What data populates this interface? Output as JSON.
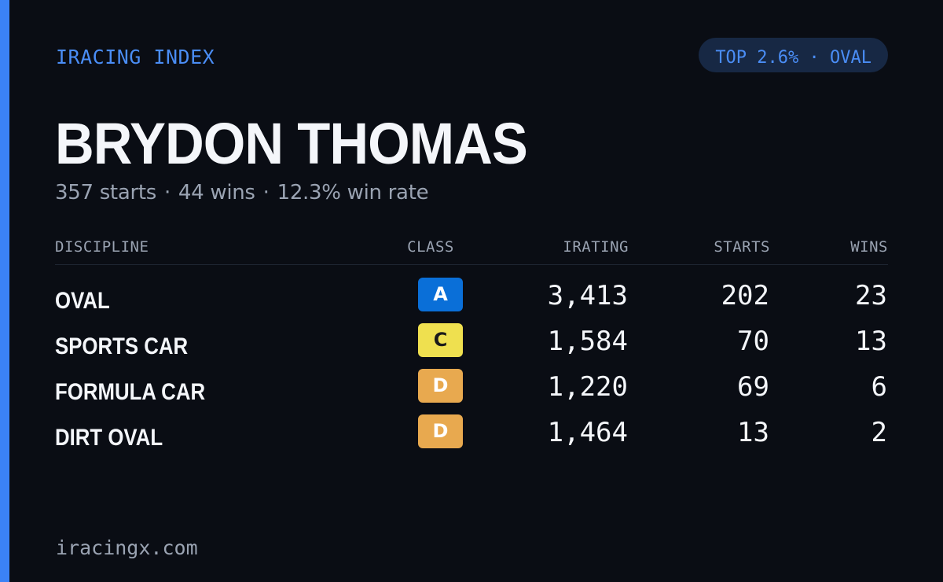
{
  "header": {
    "brand": "IRACING INDEX",
    "badge": "TOP 2.6% · OVAL"
  },
  "driver": {
    "name": "BRYDON THOMAS",
    "starts_text": "357 starts",
    "wins_text": "44 wins",
    "win_rate_text": "12.3% win rate",
    "separator": "·"
  },
  "table": {
    "columns": {
      "discipline": "DISCIPLINE",
      "class": "CLASS",
      "irating": "IRATING",
      "starts": "STARTS",
      "wins": "WINS"
    },
    "rows": [
      {
        "discipline": "OVAL",
        "class": "A",
        "irating": "3,413",
        "starts": "202",
        "wins": "23",
        "class_bg": "#0a6fd8",
        "class_fg": "#ffffff"
      },
      {
        "discipline": "SPORTS CAR",
        "class": "C",
        "irating": "1,584",
        "starts": "70",
        "wins": "13",
        "class_bg": "#efe04f",
        "class_fg": "#1a1a1a"
      },
      {
        "discipline": "FORMULA CAR",
        "class": "D",
        "irating": "1,220",
        "starts": "69",
        "wins": "6",
        "class_bg": "#e8a94f",
        "class_fg": "#ffffff"
      },
      {
        "discipline": "DIRT OVAL",
        "class": "D",
        "irating": "1,464",
        "starts": "13",
        "wins": "2",
        "class_bg": "#e8a94f",
        "class_fg": "#ffffff"
      }
    ]
  },
  "footer": {
    "url": "iracingx.com"
  },
  "colors": {
    "accent": "#3b82f6",
    "background": "#0a0d14",
    "badge_bg": "#172844"
  }
}
